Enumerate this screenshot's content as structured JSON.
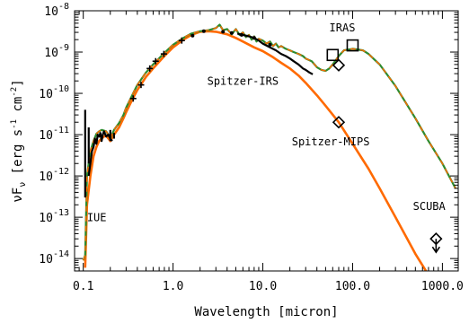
{
  "chart_data": {
    "type": "line",
    "xlabel": "Wavelength [micron]",
    "ylabel": "νF_ν [erg s^-1 cm^-2]",
    "ylabel_parts": {
      "main": "νF",
      "sub": "ν",
      "unit_open": " [erg s",
      "exp1": "-1",
      "unit_mid": " cm",
      "exp2": "-2",
      "unit_close": "]"
    },
    "xscale": "log",
    "yscale": "log",
    "xlim": [
      0.08,
      1500
    ],
    "ylim": [
      5e-15,
      1e-08
    ],
    "x_tick_labels": [
      "0.1",
      "1.0",
      "10.0",
      "100.0",
      "1000.0"
    ],
    "x_tick_values": [
      0.1,
      1,
      10,
      100,
      1000
    ],
    "y_tick_values": [
      1e-14,
      1e-13,
      1e-12,
      1e-11,
      1e-10,
      1e-09,
      1e-08
    ],
    "y_tick_mantissa": "10",
    "y_tick_exponents": [
      "-14",
      "-13",
      "-12",
      "-11",
      "-10",
      "-9",
      "-8"
    ],
    "annotations": [
      "IRAS",
      "Spitzer-IRS",
      "Spitzer-MIPS",
      "IUE",
      "SCUBA"
    ],
    "colors": {
      "stellar": "#ff6a00",
      "total": "#2e8b2e",
      "dashed": "#ff6a00",
      "points": "#000000"
    },
    "series": [
      {
        "style": "solid-orange",
        "x": [
          0.105,
          0.11,
          0.12,
          0.13,
          0.14,
          0.15,
          0.16,
          0.17,
          0.18,
          0.2,
          0.22,
          0.25,
          0.28,
          0.3,
          0.35,
          0.4,
          0.5,
          0.6,
          0.8,
          1.0,
          1.3,
          1.6,
          2.0,
          2.5,
          3.0,
          4.0,
          5.0,
          6.0,
          8.0,
          10,
          13,
          16,
          20,
          25,
          30,
          40,
          50,
          70,
          100,
          150,
          200,
          300,
          500,
          700
        ],
        "y": [
          6e-15,
          2e-13,
          1e-12,
          3e-12,
          5e-12,
          7e-12,
          8e-12,
          9e-12,
          9.5e-12,
          7e-12,
          1e-11,
          1.5e-11,
          2.5e-11,
          3.5e-11,
          7e-11,
          1.2e-10,
          2.5e-10,
          4e-10,
          8e-10,
          1.3e-09,
          2e-09,
          2.6e-09,
          3.1e-09,
          3.2e-09,
          3.1e-09,
          2.7e-09,
          2.2e-09,
          1.8e-09,
          1.3e-09,
          1.05e-09,
          7.5e-10,
          5.5e-10,
          4e-10,
          2.7e-10,
          1.8e-10,
          9e-11,
          5e-11,
          2e-11,
          6e-12,
          1.5e-12,
          5e-13,
          1e-13,
          1.3e-14,
          4e-15
        ]
      },
      {
        "style": "solid-green",
        "x": [
          0.1,
          0.105,
          0.11,
          0.115,
          0.12,
          0.13,
          0.14,
          0.15,
          0.16,
          0.17,
          0.18,
          0.19,
          0.2,
          0.22,
          0.25,
          0.28,
          0.3,
          0.35,
          0.4,
          0.5,
          0.6,
          0.8,
          1.0,
          1.3,
          1.6,
          2.0,
          2.5,
          3.0,
          3.3,
          3.6,
          4.0,
          4.5,
          5.0,
          5.5,
          6.0,
          6.5,
          7.0,
          7.5,
          8.0,
          8.5,
          9.0,
          10,
          11,
          12,
          13,
          14,
          15,
          16,
          18,
          20,
          22,
          25,
          28,
          30,
          35,
          40,
          45,
          50,
          55,
          60,
          70,
          80,
          100,
          130,
          150,
          200,
          300,
          500,
          700,
          1000,
          1400
        ],
        "y": [
          9e-15,
          1.2e-14,
          1e-12,
          2e-12,
          4e-12,
          7e-12,
          1.05e-11,
          1.2e-11,
          1.3e-11,
          1.25e-11,
          1.2e-11,
          1e-11,
          8e-12,
          1.3e-11,
          1.9e-11,
          3e-11,
          4.5e-11,
          9e-11,
          1.6e-10,
          3.2e-10,
          5e-10,
          9.5e-10,
          1.5e-09,
          2.2e-09,
          2.8e-09,
          3.2e-09,
          3.4e-09,
          3.8e-09,
          4.6e-09,
          3.4e-09,
          3.6e-09,
          2.7e-09,
          3.6e-09,
          2.6e-09,
          3e-09,
          2.3e-09,
          2.6e-09,
          2e-09,
          2.4e-09,
          1.8e-09,
          2.1e-09,
          1.9e-09,
          1.6e-09,
          1.8e-09,
          1.4e-09,
          1.6e-09,
          1.3e-09,
          1.4e-09,
          1.2e-09,
          1.1e-09,
          1e-09,
          9e-10,
          8e-10,
          7e-10,
          6e-10,
          4.3e-10,
          3.7e-10,
          3.5e-10,
          4e-10,
          5e-10,
          8e-10,
          1.1e-09,
          1.2e-09,
          1.1e-09,
          9e-10,
          5e-10,
          1.5e-10,
          2.5e-11,
          7e-12,
          2e-12,
          5e-13
        ]
      },
      {
        "style": "dashed-orange",
        "x": [
          0.1,
          0.105,
          0.11,
          0.115,
          0.12,
          0.13,
          0.14,
          0.15,
          0.16,
          0.17,
          0.18,
          0.19,
          0.2,
          0.22,
          0.25,
          0.28,
          0.3,
          0.35,
          0.4,
          0.5,
          0.6,
          0.8,
          1.0,
          1.3,
          1.6,
          2.0,
          2.5,
          3.0,
          3.3,
          3.6,
          4.0,
          4.5,
          5.0,
          5.5,
          6.0,
          6.5,
          7.0,
          7.5,
          8.0,
          8.5,
          9.0,
          10,
          11,
          12,
          13,
          14,
          15,
          16,
          18,
          20,
          22,
          25,
          28,
          30,
          35,
          40,
          45,
          50,
          55,
          60,
          70,
          80,
          100,
          130,
          150,
          200,
          300,
          500,
          700,
          1000,
          1400
        ],
        "y": [
          9e-15,
          1.2e-14,
          1e-12,
          2e-12,
          4e-12,
          7e-12,
          1.05e-11,
          1.2e-11,
          1.3e-11,
          1.25e-11,
          1.2e-11,
          1e-11,
          8e-12,
          1.3e-11,
          1.9e-11,
          3e-11,
          4.5e-11,
          9e-11,
          1.6e-10,
          3.2e-10,
          5e-10,
          9.5e-10,
          1.5e-09,
          2.2e-09,
          2.8e-09,
          3.2e-09,
          3.4e-09,
          3.8e-09,
          4.6e-09,
          3.4e-09,
          3.6e-09,
          2.7e-09,
          3.6e-09,
          2.6e-09,
          3e-09,
          2.3e-09,
          2.6e-09,
          2e-09,
          2.4e-09,
          1.8e-09,
          2.1e-09,
          1.9e-09,
          1.6e-09,
          1.8e-09,
          1.4e-09,
          1.6e-09,
          1.3e-09,
          1.4e-09,
          1.2e-09,
          1.1e-09,
          1e-09,
          9e-10,
          8e-10,
          7e-10,
          6e-10,
          4.3e-10,
          3.7e-10,
          3.5e-10,
          4e-10,
          5e-10,
          8e-10,
          1.1e-09,
          1.2e-09,
          1.1e-09,
          9e-10,
          5e-10,
          1.5e-10,
          2.5e-11,
          7e-12,
          2e-12,
          5e-13
        ]
      },
      {
        "style": "black-spectrum",
        "x": [
          0.115,
          0.12,
          0.125,
          0.13,
          0.135,
          0.14,
          0.145,
          0.15,
          0.155,
          0.16,
          0.165,
          0.17,
          0.18,
          0.19,
          0.2,
          0.21
        ],
        "y": [
          1e-12,
          2e-12,
          4e-12,
          5e-12,
          8e-12,
          6e-12,
          1e-11,
          9e-12,
          1.1e-11,
          7e-12,
          1e-11,
          1.2e-11,
          9e-12,
          1e-11,
          8e-12,
          7e-12
        ]
      },
      {
        "style": "black-spectrum",
        "x": [
          5.2,
          6,
          7,
          8,
          9,
          10,
          12,
          14,
          16,
          18,
          20,
          22,
          25,
          28,
          30,
          33,
          36
        ],
        "y": [
          2.8e-09,
          2.6e-09,
          2.4e-09,
          2.2e-09,
          1.9e-09,
          1.6e-09,
          1.3e-09,
          1.1e-09,
          9e-10,
          8e-10,
          7e-10,
          6e-10,
          5e-10,
          4e-10,
          3.7e-10,
          3.2e-10,
          2.9e-10
        ]
      }
    ],
    "vertical_bars": [
      {
        "x": 0.105,
        "y_low": 3e-13,
        "y_high": 4e-11
      },
      {
        "x": 0.115,
        "y_low": 2e-12,
        "y_high": 1.5e-11
      },
      {
        "x": 0.2,
        "y_low": 7e-12,
        "y_high": 1.3e-11
      },
      {
        "x": 0.22,
        "y_low": 8e-12,
        "y_high": 1.1e-11
      }
    ],
    "photometry": [
      {
        "x": 0.36,
        "y": 7.5e-11,
        "marker": "plus"
      },
      {
        "x": 0.44,
        "y": 1.6e-10,
        "marker": "plus"
      },
      {
        "x": 0.55,
        "y": 4e-10,
        "marker": "plus"
      },
      {
        "x": 0.64,
        "y": 6e-10,
        "marker": "plus"
      },
      {
        "x": 0.79,
        "y": 9e-10,
        "marker": "plus"
      },
      {
        "x": 1.25,
        "y": 1.9e-09,
        "marker": "plus"
      },
      {
        "x": 1.65,
        "y": 2.5e-09,
        "marker": "dot"
      },
      {
        "x": 2.2,
        "y": 3.2e-09,
        "marker": "dot"
      },
      {
        "x": 3.6,
        "y": 3.1e-09,
        "marker": "dot"
      },
      {
        "x": 4.5,
        "y": 2.9e-09,
        "marker": "dot"
      },
      {
        "x": 5.8,
        "y": 2.6e-09,
        "marker": "dot"
      },
      {
        "x": 8,
        "y": 2.2e-09,
        "marker": "dot"
      },
      {
        "x": 12,
        "y": 1.5e-09,
        "marker": "dot"
      }
    ],
    "iras_points": [
      {
        "x": 60,
        "y": 8.5e-10
      },
      {
        "x": 100,
        "y": 1.45e-09
      }
    ],
    "mips_points": [
      {
        "x": 70,
        "y": 4.8e-10
      },
      {
        "x": 70,
        "y": 2e-11
      }
    ],
    "upper_limit": {
      "x": 850,
      "y": 3e-14
    },
    "annotation_positions_data": [
      {
        "text_index": 0,
        "x": 55,
        "y": 3.2e-09
      },
      {
        "text_index": 1,
        "x": 2.4,
        "y": 1.6e-10
      },
      {
        "text_index": 2,
        "x": 21,
        "y": 5.5e-12
      },
      {
        "text_index": 3,
        "x": 0.11,
        "y": 8e-14
      },
      {
        "text_index": 4,
        "x": 470,
        "y": 1.5e-13
      }
    ]
  }
}
